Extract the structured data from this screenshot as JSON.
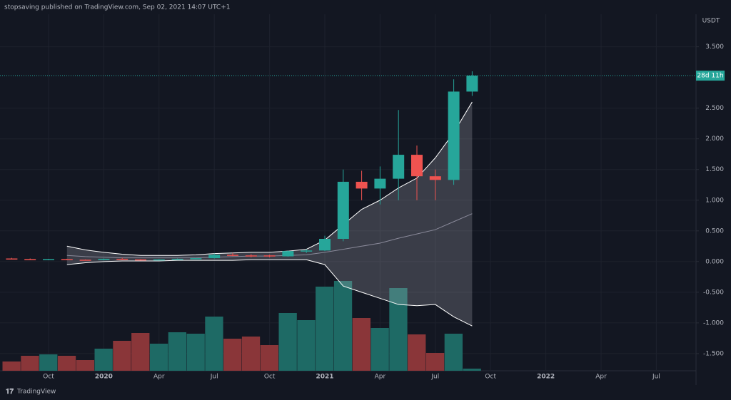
{
  "header": {
    "title": "stopsaving published on TradingView.com, Sep 02, 2021 14:07 UTC+1"
  },
  "footer": {
    "brand": "TradingView"
  },
  "chart_data": {
    "type": "candlestick",
    "currency": "USDT",
    "countdown": "28d 11h",
    "categories": [
      null,
      null,
      "Oct",
      null,
      null,
      "2020",
      null,
      null,
      "Apr",
      null,
      null,
      "Jul",
      null,
      null,
      "Oct",
      null,
      null,
      "2021",
      null,
      null,
      "Apr",
      null,
      null,
      "Jul",
      null,
      null,
      "Oct",
      null,
      null,
      "2022",
      null,
      null,
      "Apr",
      null,
      null,
      "Jul"
    ],
    "open": [
      0.05,
      0.04,
      0.035,
      0.04,
      0.03,
      0.025,
      0.045,
      0.035,
      0.025,
      0.035,
      0.045,
      0.055,
      0.11,
      0.1,
      0.1,
      0.085,
      0.17,
      0.18,
      0.37,
      1.3,
      1.19,
      1.35,
      1.74,
      1.39,
      1.33,
      2.77,
      null,
      null,
      null,
      null,
      null,
      null,
      null,
      null,
      null,
      null
    ],
    "high": [
      0.06,
      0.05,
      0.045,
      0.045,
      0.035,
      0.05,
      0.06,
      0.04,
      0.04,
      0.05,
      0.06,
      0.13,
      0.14,
      0.12,
      0.11,
      0.18,
      0.2,
      0.42,
      1.5,
      1.48,
      1.55,
      2.47,
      1.89,
      1.5,
      2.97,
      3.1,
      null,
      null,
      null,
      null,
      null,
      null,
      null,
      null,
      null,
      null
    ],
    "low": [
      0.04,
      0.03,
      0.03,
      0.025,
      0.02,
      0.02,
      0.03,
      0.015,
      0.02,
      0.03,
      0.04,
      0.05,
      0.09,
      0.07,
      0.07,
      0.08,
      0.14,
      0.17,
      0.33,
      1.0,
      0.93,
      1.0,
      1.0,
      1.0,
      1.25,
      2.7,
      null,
      null,
      null,
      null,
      null,
      null,
      null,
      null,
      null,
      null
    ],
    "close": [
      0.04,
      0.035,
      0.04,
      0.03,
      0.025,
      0.045,
      0.035,
      0.025,
      0.035,
      0.045,
      0.055,
      0.11,
      0.1,
      0.085,
      0.085,
      0.17,
      0.18,
      0.37,
      1.3,
      1.19,
      1.35,
      1.74,
      1.39,
      1.33,
      2.77,
      3.03,
      null,
      null,
      null,
      null,
      null,
      null,
      null,
      null,
      null,
      null
    ],
    "volume": [
      13,
      21,
      23,
      21,
      15,
      31,
      42,
      53,
      38,
      54,
      52,
      76,
      45,
      48,
      36,
      81,
      71,
      118,
      126,
      74,
      60,
      116,
      51,
      25,
      52,
      3,
      null,
      null,
      null,
      null,
      null,
      null,
      null,
      null,
      null,
      null
    ],
    "bands": {
      "upper": [
        null,
        null,
        null,
        0.25,
        0.19,
        0.15,
        0.12,
        0.1,
        0.1,
        0.1,
        0.11,
        0.13,
        0.14,
        0.15,
        0.15,
        0.17,
        0.2,
        0.35,
        0.6,
        0.85,
        1.0,
        1.2,
        1.36,
        1.69,
        2.1,
        2.6,
        null,
        null,
        null,
        null,
        null,
        null,
        null,
        null,
        null,
        null
      ],
      "basis": [
        null,
        null,
        null,
        0.1,
        0.08,
        0.07,
        0.06,
        0.06,
        0.06,
        0.06,
        0.06,
        0.07,
        0.08,
        0.09,
        0.09,
        0.1,
        0.11,
        0.15,
        0.2,
        0.25,
        0.3,
        0.38,
        0.45,
        0.52,
        0.65,
        0.78,
        null,
        null,
        null,
        null,
        null,
        null,
        null,
        null,
        null,
        null
      ],
      "lower": [
        null,
        null,
        null,
        -0.05,
        -0.02,
        0.0,
        0.01,
        0.01,
        0.01,
        0.02,
        0.02,
        0.02,
        0.02,
        0.03,
        0.03,
        0.03,
        0.03,
        -0.05,
        -0.4,
        -0.5,
        -0.6,
        -0.7,
        -0.72,
        -0.7,
        -0.9,
        -1.05,
        null,
        null,
        null,
        null,
        null,
        null,
        null,
        null,
        null,
        null
      ]
    },
    "up_color": "#26a69a",
    "down_color": "#ef5350",
    "volume_up_color": "#1e6a65",
    "volume_down_color": "#8a3639",
    "band_color": "#ffffff",
    "basis_color": "#8a8a9a",
    "ylim": [
      -1.78,
      4.03
    ],
    "yticks": [
      {
        "value": 3.5,
        "label": "3.500"
      },
      {
        "value": 2.5,
        "label": "2.500"
      },
      {
        "value": 2.0,
        "label": "2.000"
      },
      {
        "value": 1.5,
        "label": "1.500"
      },
      {
        "value": 1.0,
        "label": "1.000"
      },
      {
        "value": 0.5,
        "label": "0.500"
      },
      {
        "value": 0.0,
        "label": "0.000"
      },
      {
        "value": -0.5,
        "label": "-0.500"
      },
      {
        "value": -1.0,
        "label": "-1.000"
      },
      {
        "value": -1.5,
        "label": "-1.500"
      }
    ],
    "grid": true
  }
}
